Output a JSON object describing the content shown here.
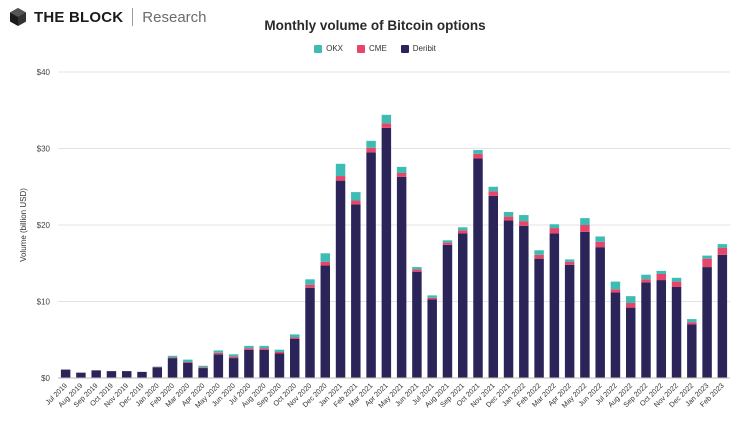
{
  "header": {
    "brand_name": "THE BLOCK",
    "brand_sub": "Research",
    "logo_icon": "the-block-logo-icon"
  },
  "chart_data": {
    "type": "bar",
    "stacked": true,
    "title": "Monthly volume of Bitcoin options",
    "xlabel": "",
    "ylabel": "Volume (billion USD)",
    "ylim": [
      0,
      40
    ],
    "yticks": [
      0,
      10,
      20,
      30,
      40
    ],
    "ytick_labels": [
      "$0",
      "$10",
      "$20",
      "$30",
      "$40"
    ],
    "grid": true,
    "legend_position": "top-center",
    "categories": [
      "Jul 2019",
      "Aug 2019",
      "Sep 2019",
      "Oct 2019",
      "Nov 2019",
      "Dec 2019",
      "Jan 2020",
      "Feb 2020",
      "Mar 2020",
      "Apr 2020",
      "May 2020",
      "Jun 2020",
      "Jul 2020",
      "Aug 2020",
      "Sep 2020",
      "Oct 2020",
      "Nov 2020",
      "Dec 2020",
      "Jan 2021",
      "Feb 2021",
      "Mar 2021",
      "Apr 2021",
      "May 2021",
      "Jun 2021",
      "Jul 2021",
      "Aug 2021",
      "Sep 2021",
      "Oct 2021",
      "Nov 2021",
      "Dec 2021",
      "Jan 2022",
      "Feb 2022",
      "Mar 2022",
      "Apr 2022",
      "May 2022",
      "Jun 2022",
      "Jul 2022",
      "Aug 2022",
      "Sep 2022",
      "Oct 2022",
      "Nov 2022",
      "Dec 2022",
      "Jan 2023",
      "Feb 2023"
    ],
    "series": [
      {
        "name": "Deribit",
        "color": "#2b2459",
        "values": [
          1.1,
          0.7,
          1.0,
          0.9,
          0.9,
          0.8,
          1.4,
          2.6,
          2.0,
          1.3,
          3.1,
          2.6,
          3.7,
          3.7,
          3.2,
          5.1,
          11.8,
          14.7,
          25.8,
          22.7,
          29.5,
          32.7,
          26.3,
          13.9,
          10.3,
          17.4,
          18.9,
          28.7,
          23.8,
          20.6,
          19.9,
          15.6,
          18.9,
          14.8,
          19.1,
          17.1,
          11.2,
          9.2,
          12.5,
          12.8,
          11.9,
          7.0,
          14.5,
          16.1
        ]
      },
      {
        "name": "CME",
        "color": "#e8456b",
        "values": [
          0.0,
          0.0,
          0.0,
          0.0,
          0.0,
          0.0,
          0.05,
          0.1,
          0.1,
          0.1,
          0.2,
          0.2,
          0.2,
          0.2,
          0.2,
          0.2,
          0.4,
          0.5,
          0.6,
          0.5,
          0.6,
          0.6,
          0.5,
          0.3,
          0.2,
          0.3,
          0.4,
          0.6,
          0.6,
          0.5,
          0.6,
          0.5,
          0.7,
          0.4,
          0.9,
          0.7,
          0.4,
          0.6,
          0.4,
          0.8,
          0.7,
          0.3,
          1.1,
          0.9
        ]
      },
      {
        "name": "OKX",
        "color": "#3dbcb4",
        "values": [
          0.0,
          0.0,
          0.0,
          0.0,
          0.0,
          0.0,
          0.05,
          0.2,
          0.3,
          0.2,
          0.3,
          0.3,
          0.3,
          0.3,
          0.3,
          0.4,
          0.7,
          1.1,
          1.6,
          1.1,
          0.9,
          1.1,
          0.8,
          0.3,
          0.3,
          0.3,
          0.4,
          0.5,
          0.6,
          0.6,
          0.8,
          0.6,
          0.5,
          0.3,
          0.9,
          0.7,
          1.0,
          0.9,
          0.6,
          0.4,
          0.5,
          0.4,
          0.4,
          0.5
        ]
      }
    ]
  }
}
